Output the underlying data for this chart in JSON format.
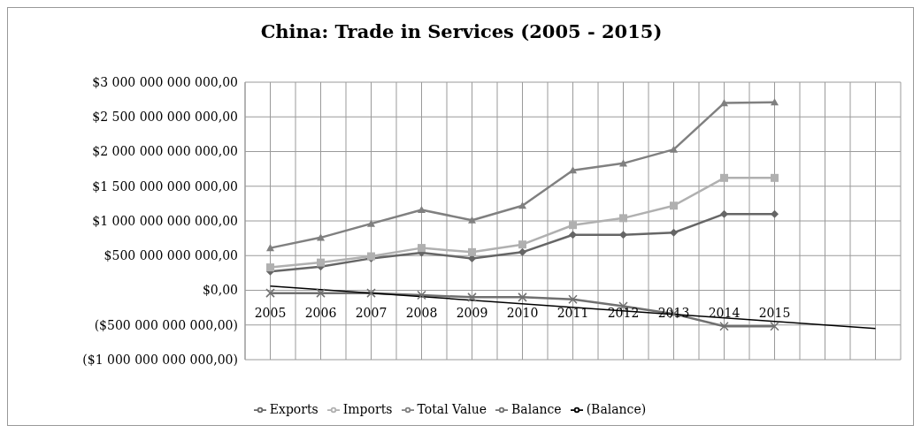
{
  "chart_data": {
    "type": "line",
    "title": "China: Trade in Services (2005 - 2015)",
    "categories": [
      "2005",
      "2006",
      "2007",
      "2008",
      "2009",
      "2010",
      "2011",
      "2012",
      "2013",
      "2014",
      "2015",
      null,
      null
    ],
    "series": [
      {
        "name": "Exports",
        "color": "#666666",
        "marker": "diamond",
        "values": [
          270000000000,
          340000000000,
          460000000000,
          540000000000,
          460000000000,
          550000000000,
          800000000000,
          800000000000,
          830000000000,
          1100000000000,
          1100000000000,
          null,
          null
        ]
      },
      {
        "name": "Imports",
        "color": "#b0b0b0",
        "marker": "square",
        "values": [
          330000000000,
          400000000000,
          490000000000,
          610000000000,
          550000000000,
          660000000000,
          940000000000,
          1040000000000,
          1220000000000,
          1620000000000,
          1620000000000,
          null,
          null
        ]
      },
      {
        "name": "Total Value",
        "color": "#808080",
        "marker": "triangle",
        "values": [
          610000000000,
          760000000000,
          960000000000,
          1160000000000,
          1010000000000,
          1220000000000,
          1730000000000,
          1830000000000,
          2030000000000,
          2700000000000,
          2710000000000,
          null,
          null
        ]
      },
      {
        "name": "Balance",
        "color": "#707070",
        "marker": "cross",
        "values": [
          -40000000000,
          -40000000000,
          -40000000000,
          -70000000000,
          -100000000000,
          -100000000000,
          -130000000000,
          -230000000000,
          -340000000000,
          -520000000000,
          -520000000000,
          null,
          null
        ]
      },
      {
        "name": "(Balance)",
        "color": "#000000",
        "marker": "none",
        "values": [
          60000000000,
          null,
          null,
          null,
          null,
          null,
          null,
          null,
          null,
          null,
          null,
          null,
          -550000000000
        ]
      }
    ],
    "ylim": [
      -1000000000000,
      3000000000000
    ],
    "yticks": [
      {
        "value": -1000000000000,
        "label": "($1 000 000 000 000,00)"
      },
      {
        "value": -500000000000,
        "label": "($500 000 000 000,00)"
      },
      {
        "value": 0,
        "label": "$0,00"
      },
      {
        "value": 500000000000,
        "label": "$500 000 000 000,00"
      },
      {
        "value": 1000000000000,
        "label": "$1 000 000 000 000,00"
      },
      {
        "value": 1500000000000,
        "label": "$1 500 000 000 000,00"
      },
      {
        "value": 2000000000000,
        "label": "$2 000 000 000 000,00"
      },
      {
        "value": 2500000000000,
        "label": "$2 500 000 000 000,00"
      },
      {
        "value": 3000000000000,
        "label": "$3 000 000 000 000,00"
      }
    ],
    "grid": true,
    "legend": "bottom"
  }
}
